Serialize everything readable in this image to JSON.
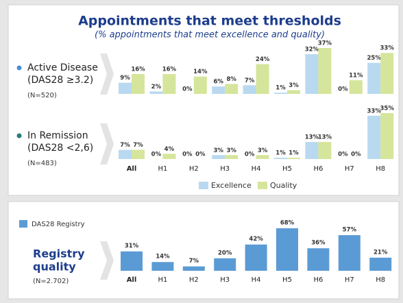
{
  "chart_data": [
    {
      "type": "grouped-bar",
      "title": "Appointments that meet thresholds",
      "subtitle": "(% appointments that meet excellence and quality)",
      "categories": [
        "All",
        "H1",
        "H2",
        "H3",
        "H4",
        "H5",
        "H6",
        "H7",
        "H8"
      ],
      "series": [
        {
          "name": "Excellence",
          "color": "#b9d9f1"
        },
        {
          "name": "Quality",
          "color": "#d5e59b"
        }
      ],
      "panels": [
        {
          "label": [
            "Active Disease",
            "(DAS28 ≥3.2)"
          ],
          "note": "(N=520)",
          "marker_color": "#4a8fd6",
          "values": [
            [
              9,
              2,
              0,
              6,
              7,
              1,
              32,
              0,
              25
            ],
            [
              16,
              16,
              14,
              8,
              24,
              3,
              37,
              11,
              33
            ]
          ],
          "value_labels": [
            [
              "9%",
              "2%",
              "0%",
              "6%",
              "7%",
              "1%",
              "32%",
              "0%",
              "25%"
            ],
            [
              "16%",
              "16%",
              "14%",
              "8%",
              "24%",
              "3%",
              "37%",
              "11%",
              "33%"
            ]
          ]
        },
        {
          "label": [
            "In Remission",
            "(DAS28 <2,6)"
          ],
          "note": "(N=483)",
          "marker_color": "#2b7b7b",
          "values": [
            [
              7,
              0,
              0,
              3,
              0,
              1,
              13,
              0,
              33
            ],
            [
              7,
              4,
              0,
              3,
              3,
              1,
              13,
              0,
              35
            ]
          ],
          "value_labels": [
            [
              "7%",
              "0%",
              "0%",
              "3%",
              "0%",
              "1%",
              "13%",
              "0%",
              "33%"
            ],
            [
              "7%",
              "4%",
              "0%",
              "3%",
              "3%",
              "1%",
              "13%",
              "0%",
              "35%"
            ]
          ]
        }
      ]
    },
    {
      "type": "bar",
      "title": [
        "Registry",
        "quality"
      ],
      "note": "(N=2.702)",
      "categories": [
        "All",
        "H1",
        "H2",
        "H3",
        "H4",
        "H5",
        "H6",
        "H7",
        "H8"
      ],
      "series": [
        {
          "name": "DAS28 Registry",
          "color": "#5b9bd5",
          "values": [
            31,
            14,
            7,
            20,
            42,
            68,
            36,
            57,
            21
          ],
          "value_labels": [
            "31%",
            "14%",
            "7%",
            "20%",
            "42%",
            "68%",
            "36%",
            "57%",
            "21%"
          ]
        }
      ]
    }
  ]
}
